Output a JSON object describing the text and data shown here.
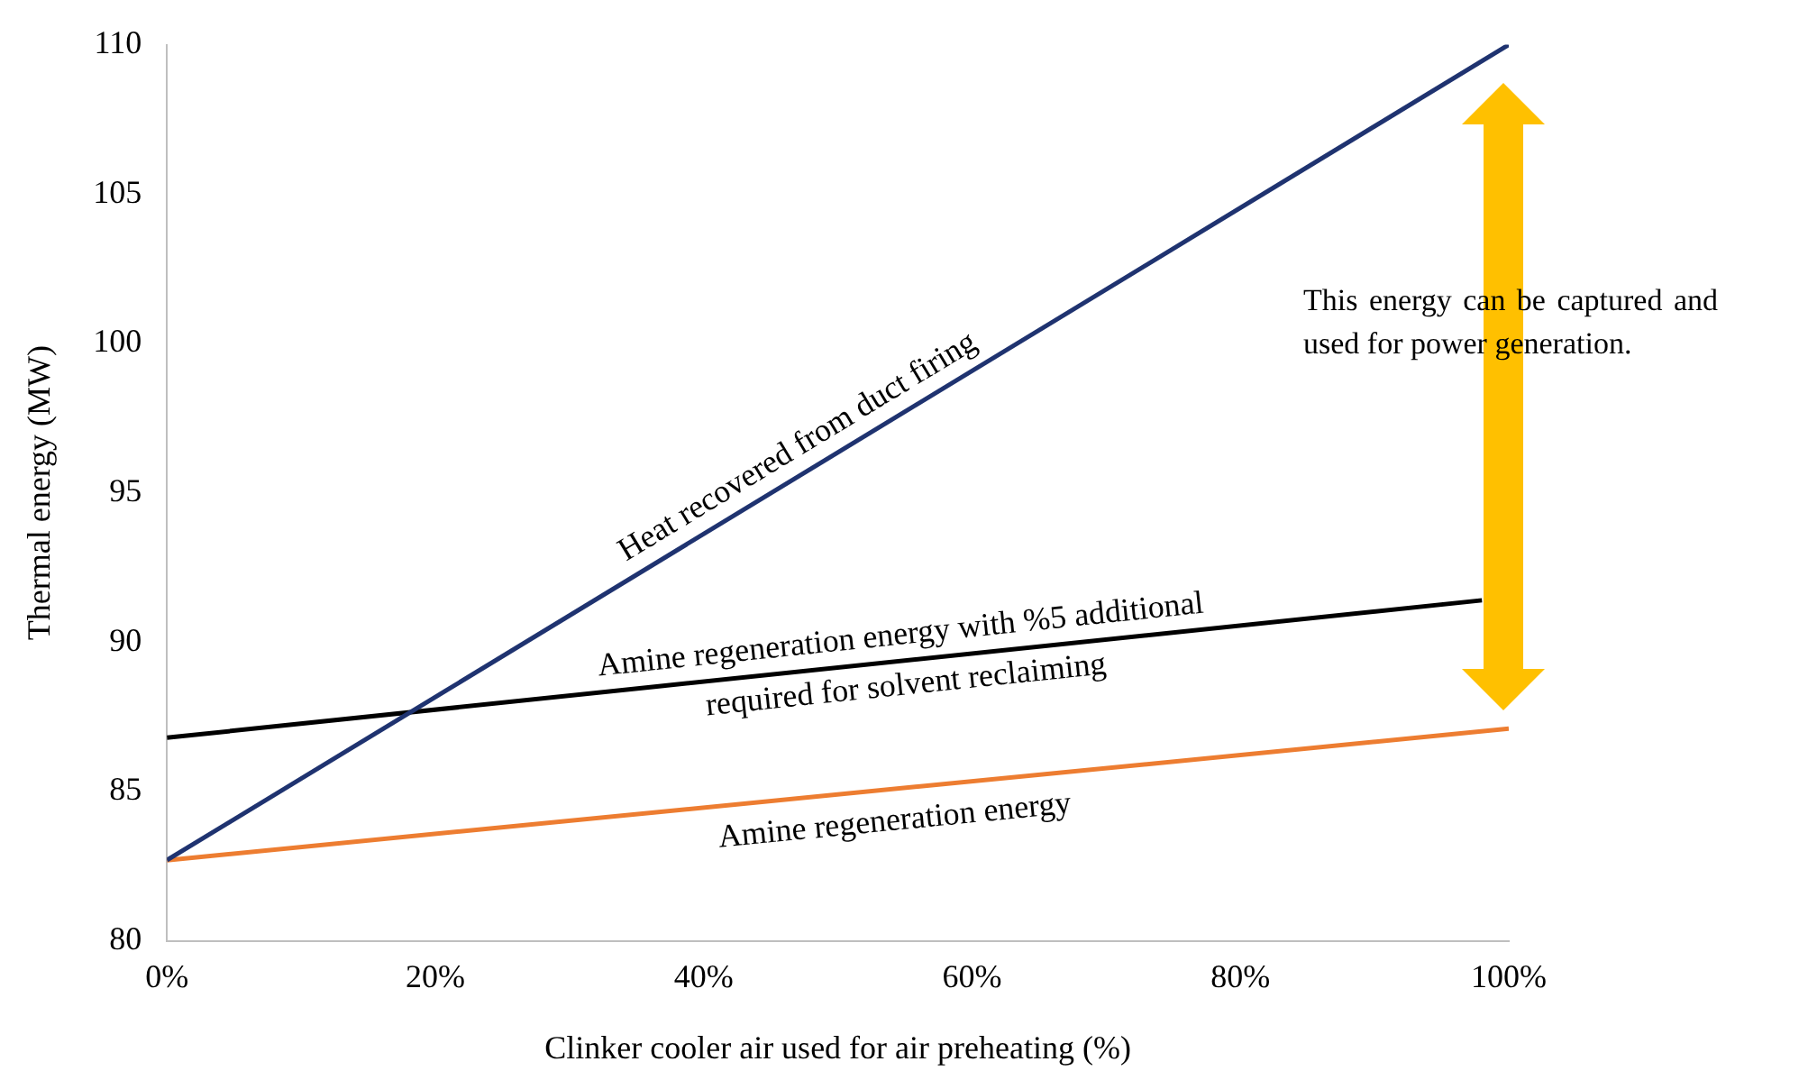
{
  "chart_data": {
    "type": "line",
    "xlabel": "Clinker cooler air used for air preheating (%)",
    "ylabel": "Thermal energy (MW)",
    "xlim": [
      0,
      100
    ],
    "xticks": [
      {
        "value": 0,
        "label": "0%"
      },
      {
        "value": 20,
        "label": "20%"
      },
      {
        "value": 40,
        "label": "40%"
      },
      {
        "value": 60,
        "label": "60%"
      },
      {
        "value": 80,
        "label": "80%"
      },
      {
        "value": 100,
        "label": "100%"
      }
    ],
    "ylim": [
      80,
      110
    ],
    "yticks": [
      80,
      85,
      90,
      95,
      100,
      105,
      110
    ],
    "grid": false,
    "legend": false,
    "marker": "none",
    "line_style": "solid",
    "series": [
      {
        "color": "#1f3370",
        "x": [
          0,
          100
        ],
        "values": [
          82.7,
          110
        ]
      },
      {
        "color": "#000000",
        "x": [
          0,
          98
        ],
        "values": [
          86.8,
          91.4
        ]
      },
      {
        "color": "#ed7d31",
        "x": [
          0,
          100
        ],
        "values": [
          82.7,
          87.1
        ]
      }
    ],
    "annotations": [
      "Heat recovered from duct firing",
      "Amine regeneration energy with %5 additional\nrequired for solvent reclaiming",
      "Amine regeneration energy",
      "This energy can be captured and used for power generation."
    ]
  }
}
